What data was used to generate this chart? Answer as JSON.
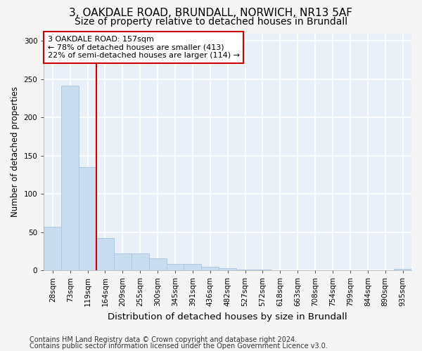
{
  "title1": "3, OAKDALE ROAD, BRUNDALL, NORWICH, NR13 5AF",
  "title2": "Size of property relative to detached houses in Brundall",
  "xlabel": "Distribution of detached houses by size in Brundall",
  "ylabel": "Number of detached properties",
  "footer1": "Contains HM Land Registry data © Crown copyright and database right 2024.",
  "footer2": "Contains public sector information licensed under the Open Government Licence v3.0.",
  "categories": [
    "28sqm",
    "73sqm",
    "119sqm",
    "164sqm",
    "209sqm",
    "255sqm",
    "300sqm",
    "345sqm",
    "391sqm",
    "436sqm",
    "482sqm",
    "527sqm",
    "572sqm",
    "618sqm",
    "663sqm",
    "708sqm",
    "754sqm",
    "799sqm",
    "844sqm",
    "890sqm",
    "935sqm"
  ],
  "values": [
    57,
    242,
    135,
    42,
    22,
    22,
    16,
    8,
    8,
    5,
    3,
    1,
    1,
    0,
    0,
    0,
    0,
    0,
    0,
    0,
    2
  ],
  "bar_color": "#c9ddf0",
  "bar_edge_color": "#a8c4e0",
  "vline_x": 3,
  "vline_color": "#cc0000",
  "annotation_text": "3 OAKDALE ROAD: 157sqm\n← 78% of detached houses are smaller (413)\n22% of semi-detached houses are larger (114) →",
  "annotation_box_color": "#ffffff",
  "annotation_box_edge": "#cc0000",
  "ylim": [
    0,
    310
  ],
  "yticks": [
    0,
    50,
    100,
    150,
    200,
    250,
    300
  ],
  "bg_color": "#eaf0f8",
  "grid_color": "#ffffff",
  "fig_color": "#f5f5f5",
  "title1_fontsize": 11,
  "title2_fontsize": 10,
  "xlabel_fontsize": 9.5,
  "ylabel_fontsize": 8.5,
  "tick_fontsize": 7.5,
  "annot_fontsize": 8,
  "footer_fontsize": 7
}
